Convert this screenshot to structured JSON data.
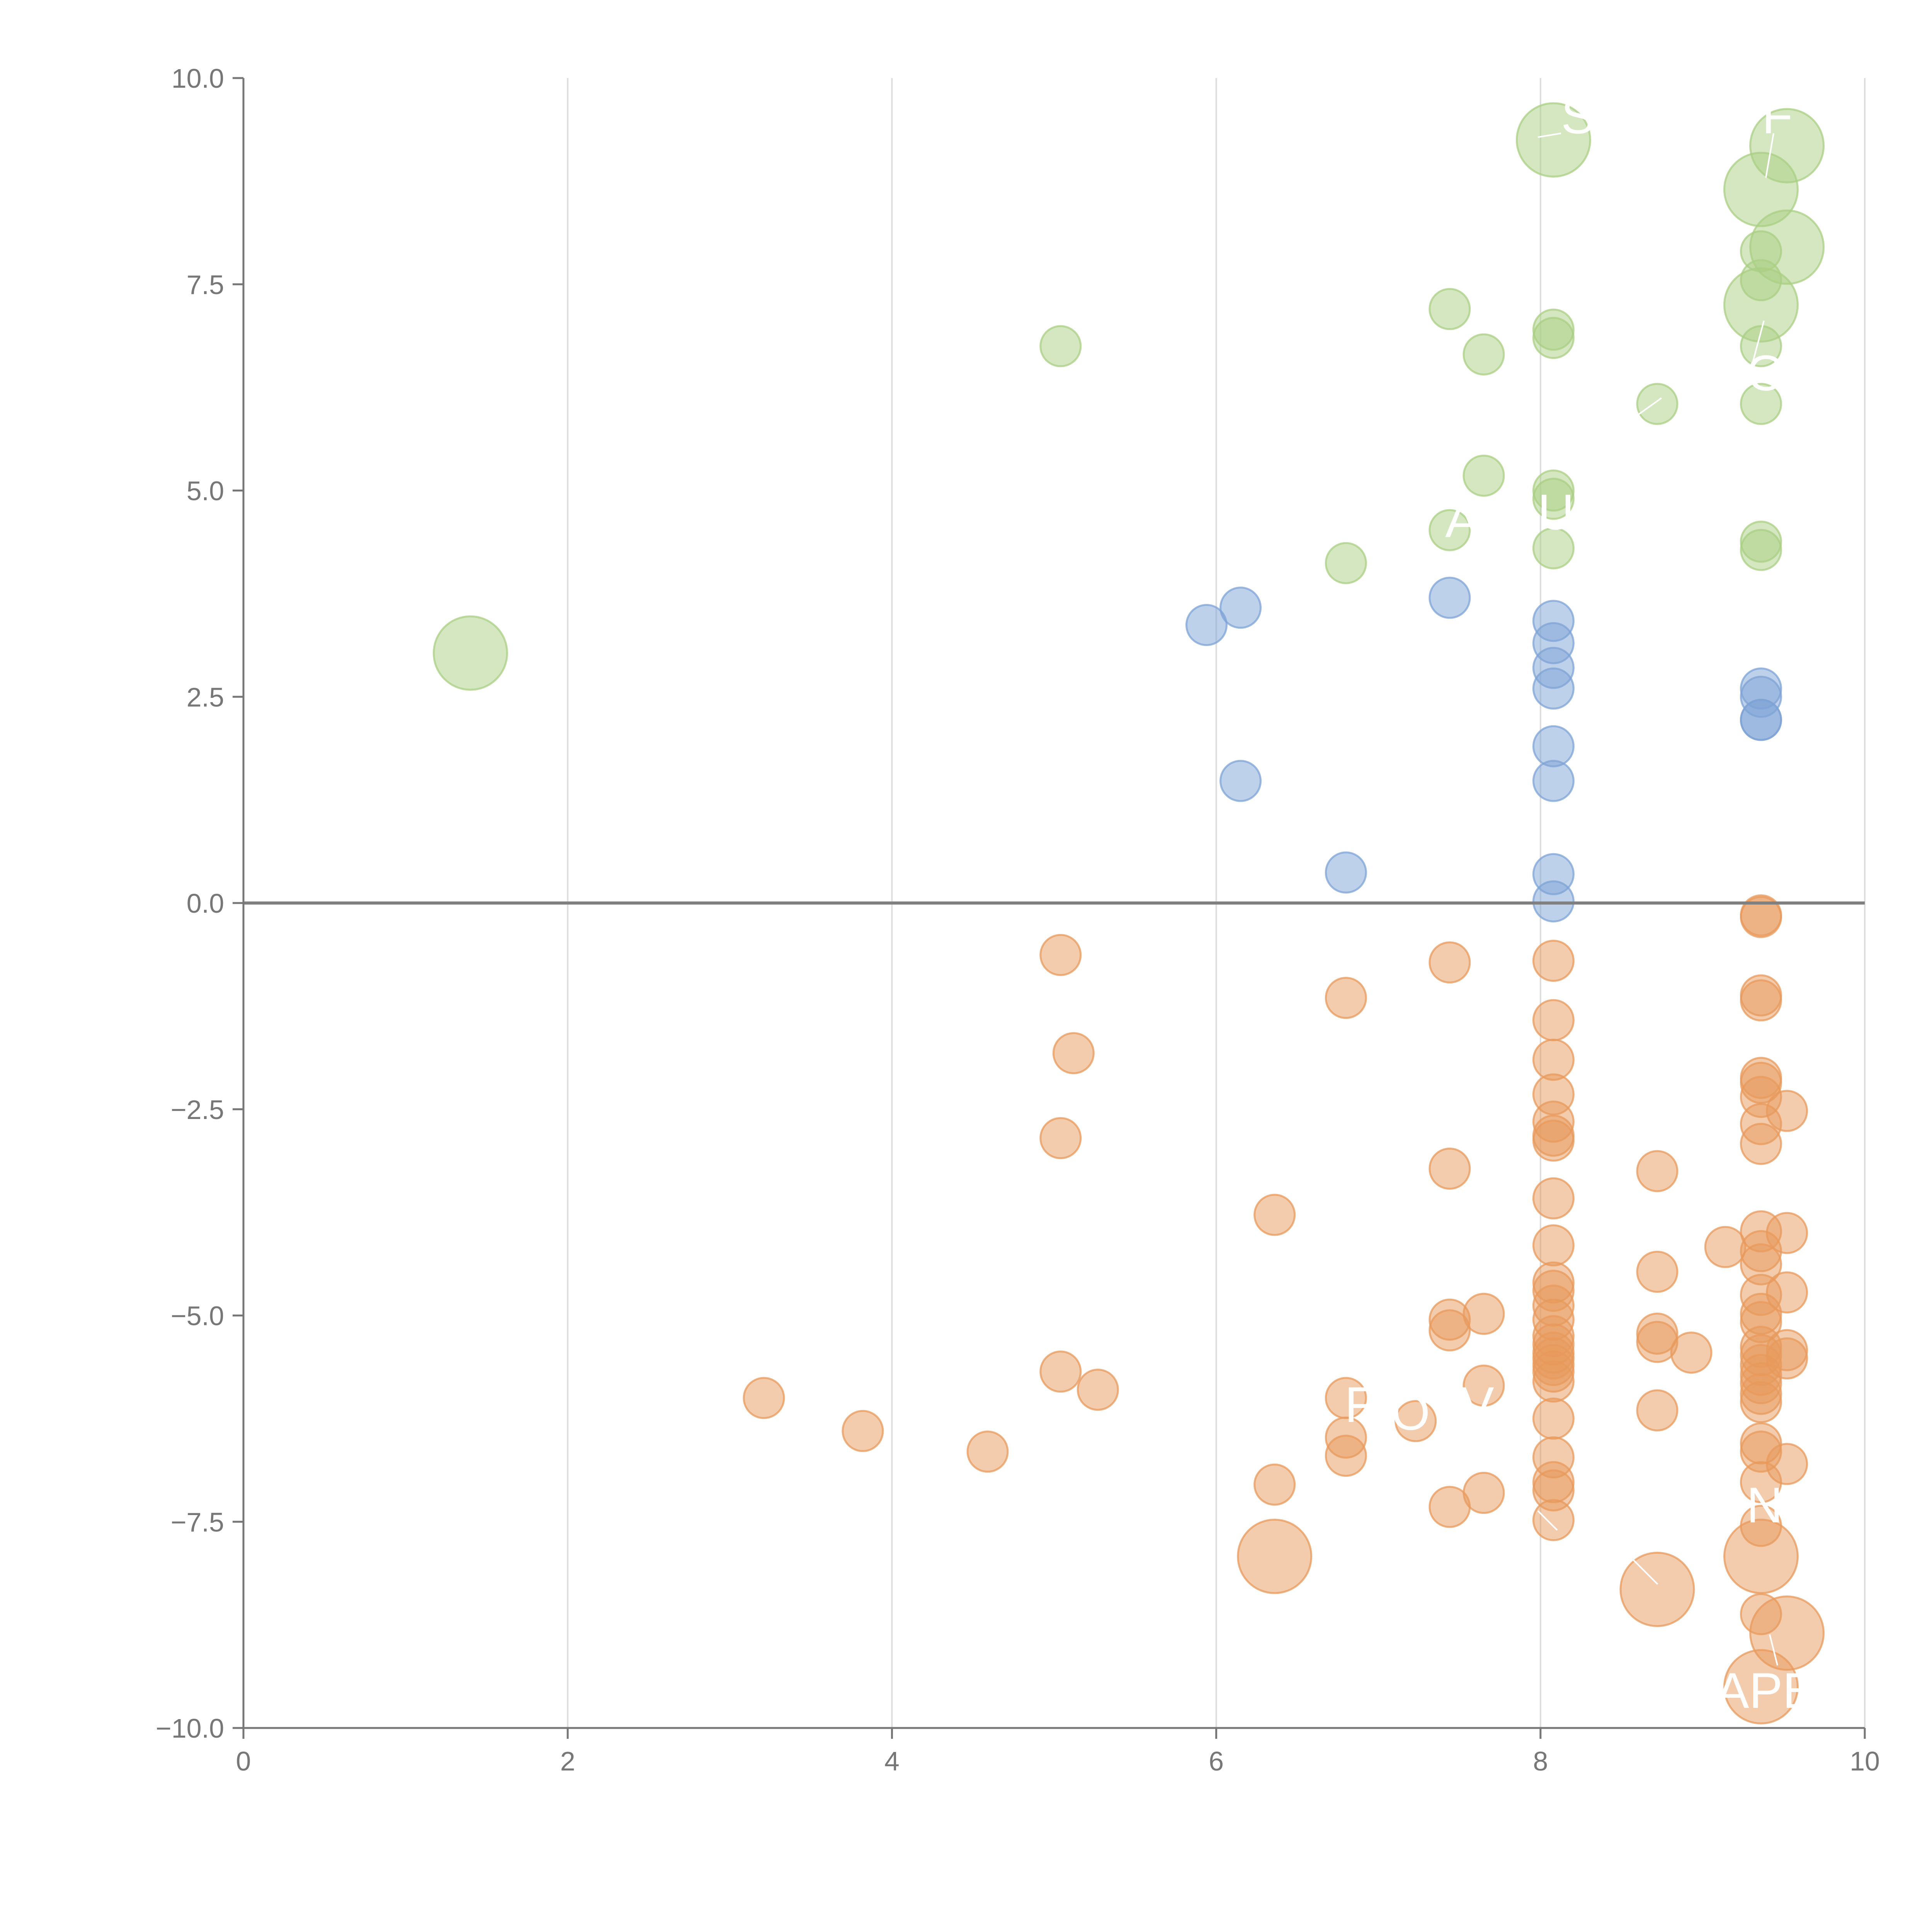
{
  "colors": {
    "positive_high": "#a9cf83",
    "positive_low": "#7ea3d6",
    "negative": "#e8995c",
    "axis": "#777777",
    "grid": "#dddddd",
    "zero_line": "#808080",
    "label": "#ffffff"
  },
  "chart_data": {
    "type": "scatter",
    "title": "",
    "xlabel": "",
    "ylabel": "",
    "xlim": [
      0,
      10
    ],
    "ylim": [
      -10,
      10
    ],
    "x_ticks": [
      "0",
      "2",
      "4",
      "6",
      "8",
      "10"
    ],
    "y_ticks": [
      "10.0",
      "7.5",
      "5.0",
      "2.5",
      "0.0",
      "−2.5",
      "−5.0",
      "−7.5",
      "−10.0"
    ],
    "grid": "vertical",
    "zero_line": true,
    "series": [
      {
        "name": "green",
        "color_key": "positive_high",
        "points": [
          {
            "x": 8.08,
            "y": 9.25,
            "size": 2
          },
          {
            "x": 9.52,
            "y": 9.18,
            "size": 2
          },
          {
            "x": 9.36,
            "y": 8.65,
            "size": 2
          },
          {
            "x": 9.52,
            "y": 7.95,
            "size": 2
          },
          {
            "x": 9.36,
            "y": 7.9,
            "size": 1
          },
          {
            "x": 9.36,
            "y": 7.55,
            "size": 1
          },
          {
            "x": 9.36,
            "y": 7.25,
            "size": 2
          },
          {
            "x": 7.44,
            "y": 7.2,
            "size": 1
          },
          {
            "x": 8.08,
            "y": 6.95,
            "size": 1
          },
          {
            "x": 8.08,
            "y": 6.85,
            "size": 1
          },
          {
            "x": 9.36,
            "y": 6.75,
            "size": 1
          },
          {
            "x": 5.04,
            "y": 6.75,
            "size": 1
          },
          {
            "x": 7.65,
            "y": 6.65,
            "size": 1
          },
          {
            "x": 8.72,
            "y": 6.05,
            "size": 1
          },
          {
            "x": 9.36,
            "y": 6.05,
            "size": 1
          },
          {
            "x": 7.65,
            "y": 5.18,
            "size": 1
          },
          {
            "x": 8.08,
            "y": 5.0,
            "size": 1
          },
          {
            "x": 8.08,
            "y": 4.9,
            "size": 1
          },
          {
            "x": 7.44,
            "y": 4.52,
            "size": 1
          },
          {
            "x": 9.36,
            "y": 4.38,
            "size": 1
          },
          {
            "x": 8.08,
            "y": 4.3,
            "size": 1
          },
          {
            "x": 9.36,
            "y": 4.28,
            "size": 1
          },
          {
            "x": 6.8,
            "y": 4.12,
            "size": 1
          },
          {
            "x": 1.4,
            "y": 3.03,
            "size": 2
          }
        ]
      },
      {
        "name": "blue",
        "color_key": "positive_low",
        "points": [
          {
            "x": 7.44,
            "y": 3.7,
            "size": 1
          },
          {
            "x": 6.15,
            "y": 3.58,
            "size": 1
          },
          {
            "x": 8.08,
            "y": 3.42,
            "size": 1
          },
          {
            "x": 5.94,
            "y": 3.37,
            "size": 1
          },
          {
            "x": 8.08,
            "y": 3.15,
            "size": 1
          },
          {
            "x": 8.08,
            "y": 2.85,
            "size": 1
          },
          {
            "x": 9.36,
            "y": 2.6,
            "size": 1
          },
          {
            "x": 8.08,
            "y": 2.6,
            "size": 1
          },
          {
            "x": 9.36,
            "y": 2.5,
            "size": 1
          },
          {
            "x": 9.36,
            "y": 2.22,
            "size": 1
          },
          {
            "x": 9.36,
            "y": 2.22,
            "size": 1
          },
          {
            "x": 8.08,
            "y": 1.9,
            "size": 1
          },
          {
            "x": 6.15,
            "y": 1.48,
            "size": 1
          },
          {
            "x": 8.08,
            "y": 1.48,
            "size": 1
          },
          {
            "x": 6.8,
            "y": 0.37,
            "size": 1
          },
          {
            "x": 8.08,
            "y": 0.35,
            "size": 1
          },
          {
            "x": 8.08,
            "y": 0.02,
            "size": 1
          }
        ]
      },
      {
        "name": "orange",
        "color_key": "negative",
        "points": [
          {
            "x": 9.36,
            "y": -0.15,
            "size": 1
          },
          {
            "x": 9.36,
            "y": -0.17,
            "size": 1
          },
          {
            "x": 5.04,
            "y": -0.63,
            "size": 1
          },
          {
            "x": 7.44,
            "y": -0.72,
            "size": 1
          },
          {
            "x": 8.08,
            "y": -0.7,
            "size": 1
          },
          {
            "x": 6.8,
            "y": -1.15,
            "size": 1
          },
          {
            "x": 9.36,
            "y": -1.12,
            "size": 1
          },
          {
            "x": 9.36,
            "y": -1.18,
            "size": 1
          },
          {
            "x": 8.08,
            "y": -1.42,
            "size": 1
          },
          {
            "x": 5.12,
            "y": -1.82,
            "size": 1
          },
          {
            "x": 8.08,
            "y": -1.9,
            "size": 1
          },
          {
            "x": 9.36,
            "y": -2.12,
            "size": 1
          },
          {
            "x": 9.36,
            "y": -2.18,
            "size": 1
          },
          {
            "x": 9.36,
            "y": -2.35,
            "size": 1
          },
          {
            "x": 8.08,
            "y": -2.32,
            "size": 1
          },
          {
            "x": 9.52,
            "y": -2.52,
            "size": 1
          },
          {
            "x": 8.08,
            "y": -2.65,
            "size": 1
          },
          {
            "x": 9.36,
            "y": -2.68,
            "size": 1
          },
          {
            "x": 8.08,
            "y": -2.82,
            "size": 1
          },
          {
            "x": 8.08,
            "y": -2.88,
            "size": 1
          },
          {
            "x": 5.04,
            "y": -2.85,
            "size": 1
          },
          {
            "x": 9.36,
            "y": -2.92,
            "size": 1
          },
          {
            "x": 7.44,
            "y": -3.22,
            "size": 1
          },
          {
            "x": 8.72,
            "y": -3.25,
            "size": 1
          },
          {
            "x": 8.08,
            "y": -3.58,
            "size": 1
          },
          {
            "x": 6.36,
            "y": -3.78,
            "size": 1
          },
          {
            "x": 9.36,
            "y": -3.98,
            "size": 1
          },
          {
            "x": 9.52,
            "y": -4.0,
            "size": 1
          },
          {
            "x": 8.08,
            "y": -4.15,
            "size": 1
          },
          {
            "x": 9.14,
            "y": -4.17,
            "size": 1
          },
          {
            "x": 9.36,
            "y": -4.22,
            "size": 1
          },
          {
            "x": 9.36,
            "y": -4.38,
            "size": 1
          },
          {
            "x": 8.72,
            "y": -4.47,
            "size": 1
          },
          {
            "x": 8.08,
            "y": -4.6,
            "size": 1
          },
          {
            "x": 8.08,
            "y": -4.7,
            "size": 1
          },
          {
            "x": 9.36,
            "y": -4.75,
            "size": 1
          },
          {
            "x": 9.52,
            "y": -4.72,
            "size": 1
          },
          {
            "x": 8.08,
            "y": -4.88,
            "size": 1
          },
          {
            "x": 7.65,
            "y": -4.98,
            "size": 1
          },
          {
            "x": 9.36,
            "y": -4.98,
            "size": 1
          },
          {
            "x": 7.44,
            "y": -5.05,
            "size": 1
          },
          {
            "x": 8.08,
            "y": -5.05,
            "size": 1
          },
          {
            "x": 9.36,
            "y": -5.08,
            "size": 1
          },
          {
            "x": 7.44,
            "y": -5.18,
            "size": 1
          },
          {
            "x": 8.72,
            "y": -5.22,
            "size": 1
          },
          {
            "x": 8.08,
            "y": -5.25,
            "size": 1
          },
          {
            "x": 8.72,
            "y": -5.32,
            "size": 1
          },
          {
            "x": 8.08,
            "y": -5.35,
            "size": 1
          },
          {
            "x": 9.36,
            "y": -5.38,
            "size": 1
          },
          {
            "x": 8.08,
            "y": -5.45,
            "size": 1
          },
          {
            "x": 8.93,
            "y": -5.45,
            "size": 1
          },
          {
            "x": 9.52,
            "y": -5.42,
            "size": 1
          },
          {
            "x": 9.36,
            "y": -5.48,
            "size": 1
          },
          {
            "x": 8.08,
            "y": -5.52,
            "size": 1
          },
          {
            "x": 9.52,
            "y": -5.52,
            "size": 1
          },
          {
            "x": 8.08,
            "y": -5.6,
            "size": 1
          },
          {
            "x": 9.36,
            "y": -5.6,
            "size": 1
          },
          {
            "x": 8.08,
            "y": -5.68,
            "size": 1
          },
          {
            "x": 5.04,
            "y": -5.68,
            "size": 1
          },
          {
            "x": 9.36,
            "y": -5.72,
            "size": 1
          },
          {
            "x": 8.08,
            "y": -5.8,
            "size": 1
          },
          {
            "x": 9.36,
            "y": -5.82,
            "size": 1
          },
          {
            "x": 7.65,
            "y": -5.85,
            "size": 1
          },
          {
            "x": 5.27,
            "y": -5.9,
            "size": 1
          },
          {
            "x": 9.36,
            "y": -5.95,
            "size": 1
          },
          {
            "x": 3.21,
            "y": -6.0,
            "size": 1
          },
          {
            "x": 6.8,
            "y": -6.0,
            "size": 1
          },
          {
            "x": 9.36,
            "y": -6.05,
            "size": 1
          },
          {
            "x": 8.72,
            "y": -6.15,
            "size": 1
          },
          {
            "x": 7.23,
            "y": -6.28,
            "size": 1
          },
          {
            "x": 8.08,
            "y": -6.25,
            "size": 1
          },
          {
            "x": 3.82,
            "y": -6.4,
            "size": 1
          },
          {
            "x": 6.8,
            "y": -6.48,
            "size": 1
          },
          {
            "x": 9.36,
            "y": -6.55,
            "size": 1
          },
          {
            "x": 9.36,
            "y": -6.65,
            "size": 1
          },
          {
            "x": 4.59,
            "y": -6.65,
            "size": 1
          },
          {
            "x": 6.8,
            "y": -6.7,
            "size": 1
          },
          {
            "x": 8.08,
            "y": -6.72,
            "size": 1
          },
          {
            "x": 9.52,
            "y": -6.8,
            "size": 1
          },
          {
            "x": 9.36,
            "y": -7.02,
            "size": 1
          },
          {
            "x": 8.08,
            "y": -7.02,
            "size": 1
          },
          {
            "x": 6.36,
            "y": -7.05,
            "size": 1
          },
          {
            "x": 8.08,
            "y": -7.12,
            "size": 1
          },
          {
            "x": 7.65,
            "y": -7.15,
            "size": 1
          },
          {
            "x": 7.44,
            "y": -7.32,
            "size": 1
          },
          {
            "x": 8.08,
            "y": -7.48,
            "size": 1
          },
          {
            "x": 9.36,
            "y": -7.55,
            "size": 1
          },
          {
            "x": 6.36,
            "y": -7.92,
            "size": 2
          },
          {
            "x": 9.36,
            "y": -7.92,
            "size": 2
          },
          {
            "x": 8.72,
            "y": -8.32,
            "size": 2
          },
          {
            "x": 9.36,
            "y": -8.62,
            "size": 1
          },
          {
            "x": 9.52,
            "y": -8.85,
            "size": 2
          },
          {
            "x": 9.36,
            "y": -9.5,
            "size": 2
          }
        ]
      }
    ],
    "annotations": [
      "S",
      "F",
      "O",
      "A",
      "U",
      "F",
      "O",
      "V",
      "N",
      "APE"
    ]
  }
}
